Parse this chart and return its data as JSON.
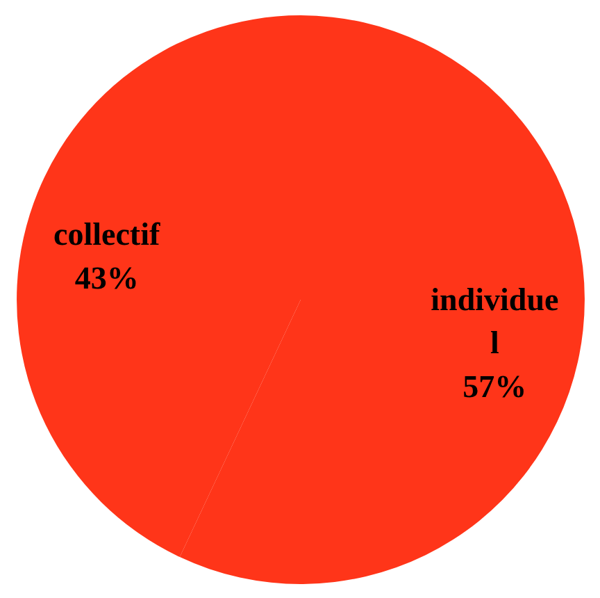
{
  "chart_data": {
    "type": "pie",
    "categories": [
      "individuel",
      "collectif"
    ],
    "values": [
      57,
      43
    ],
    "colors": [
      "#ff3519",
      "#ff3519"
    ],
    "value_labels": [
      "57%",
      "43%"
    ]
  }
}
